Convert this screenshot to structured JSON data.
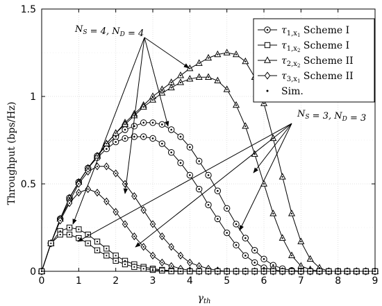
{
  "chart_data": {
    "type": "line",
    "xlabel": "γ",
    "xlabel_sub": "th",
    "ylabel": "Throughput (bps/Hz)",
    "xlim": [
      0,
      9
    ],
    "ylim": [
      0,
      1.5
    ],
    "xticks": [
      "0",
      "1",
      "2",
      "3",
      "4",
      "5",
      "6",
      "7",
      "8",
      "9"
    ],
    "yticks": [
      "0",
      "0.5",
      "1",
      "1.5"
    ],
    "grid": true,
    "legend_placement": "top-right",
    "legend": [
      {
        "sym": "τ",
        "sub": "1,x",
        "subsub": "1",
        "label": "Scheme I",
        "marker": "circle-dot"
      },
      {
        "sym": "τ",
        "sub": "1,x",
        "subsub": "2",
        "label": "Scheme I",
        "marker": "square"
      },
      {
        "sym": "τ",
        "sub": "2,x",
        "subsub": "2",
        "label": "Scheme II",
        "marker": "triangle"
      },
      {
        "sym": "τ",
        "sub": "3,x",
        "subsub": "1",
        "label": "Scheme II",
        "marker": "diamond"
      },
      {
        "sym": "",
        "sub": "",
        "subsub": "",
        "label": "Sim.",
        "marker": "dot"
      }
    ],
    "annotations": [
      {
        "text": "N_S = 4, N_D = 4"
      },
      {
        "text": "N_S = 3, N_D = 3"
      }
    ],
    "x": [
      0,
      0.25,
      0.5,
      0.75,
      1,
      1.25,
      1.5,
      1.75,
      2,
      2.25,
      2.5,
      2.75,
      3,
      3.25,
      3.5,
      3.75,
      4,
      4.25,
      4.5,
      4.75,
      5,
      5.25,
      5.5,
      5.75,
      6,
      6.25,
      6.5,
      6.75,
      7,
      7.25,
      7.5,
      7.75,
      8,
      8.25,
      8.5,
      8.75,
      9
    ],
    "series": [
      {
        "name": "τ1,x1 Scheme I (N=4)",
        "marker": "circle-dot",
        "values": [
          0,
          0.16,
          0.3,
          0.42,
          0.51,
          0.59,
          0.66,
          0.72,
          0.77,
          0.81,
          0.83,
          0.85,
          0.85,
          0.84,
          0.81,
          0.77,
          0.71,
          0.63,
          0.55,
          0.46,
          0.36,
          0.27,
          0.19,
          0.12,
          0.07,
          0.035,
          0.015,
          0.005,
          0,
          0,
          0,
          0,
          0,
          0,
          0,
          0,
          0
        ]
      },
      {
        "name": "τ1,x1 Scheme I (N=3)",
        "marker": "circle-dot",
        "values": [
          0,
          0.16,
          0.3,
          0.42,
          0.51,
          0.59,
          0.65,
          0.7,
          0.74,
          0.76,
          0.77,
          0.77,
          0.76,
          0.73,
          0.68,
          0.62,
          0.55,
          0.47,
          0.38,
          0.3,
          0.22,
          0.15,
          0.09,
          0.05,
          0.02,
          0.01,
          0,
          0,
          0,
          0,
          0,
          0,
          0,
          0,
          0,
          0,
          0
        ]
      },
      {
        "name": "τ2,x2 Scheme II (N=4)",
        "marker": "triangle",
        "values": [
          0,
          0.16,
          0.3,
          0.42,
          0.51,
          0.59,
          0.66,
          0.73,
          0.79,
          0.85,
          0.9,
          0.95,
          1.0,
          1.04,
          1.08,
          1.12,
          1.16,
          1.19,
          1.22,
          1.24,
          1.25,
          1.24,
          1.2,
          1.11,
          0.96,
          0.76,
          0.54,
          0.33,
          0.17,
          0.07,
          0.02,
          0,
          0,
          0,
          0,
          0,
          0
        ]
      },
      {
        "name": "τ2,x2 Scheme II (N=3)",
        "marker": "triangle",
        "values": [
          0,
          0.16,
          0.3,
          0.42,
          0.51,
          0.59,
          0.66,
          0.73,
          0.79,
          0.84,
          0.89,
          0.94,
          0.98,
          1.02,
          1.05,
          1.08,
          1.1,
          1.11,
          1.11,
          1.09,
          1.04,
          0.95,
          0.83,
          0.67,
          0.5,
          0.33,
          0.19,
          0.09,
          0.03,
          0.01,
          0,
          0,
          0,
          0,
          0,
          0,
          0
        ]
      },
      {
        "name": "τ3,x1 Scheme II (N=4)",
        "marker": "diamond",
        "values": [
          0,
          0.16,
          0.3,
          0.4,
          0.5,
          0.57,
          0.6,
          0.6,
          0.56,
          0.5,
          0.43,
          0.35,
          0.27,
          0.2,
          0.14,
          0.09,
          0.05,
          0.03,
          0.015,
          0.005,
          0,
          0,
          0,
          0,
          0,
          0,
          0,
          0,
          0,
          0,
          0,
          0,
          0,
          0,
          0,
          0,
          0
        ]
      },
      {
        "name": "τ3,x1 Scheme II (N=3)",
        "marker": "diamond",
        "values": [
          0,
          0.16,
          0.29,
          0.39,
          0.45,
          0.47,
          0.45,
          0.4,
          0.34,
          0.27,
          0.2,
          0.14,
          0.09,
          0.05,
          0.03,
          0.015,
          0.005,
          0,
          0,
          0,
          0,
          0,
          0,
          0,
          0,
          0,
          0,
          0,
          0,
          0,
          0,
          0,
          0,
          0,
          0,
          0,
          0
        ]
      },
      {
        "name": "τ1,x2 Scheme I (N=4)",
        "marker": "square",
        "values": [
          0,
          0.16,
          0.23,
          0.25,
          0.24,
          0.21,
          0.17,
          0.13,
          0.09,
          0.06,
          0.04,
          0.025,
          0.015,
          0.008,
          0.004,
          0,
          0,
          0,
          0,
          0,
          0,
          0,
          0,
          0,
          0,
          0,
          0,
          0,
          0,
          0,
          0,
          0,
          0,
          0,
          0,
          0,
          0
        ]
      },
      {
        "name": "τ1,x2 Scheme I (N=3)",
        "marker": "square",
        "values": [
          0,
          0.16,
          0.21,
          0.21,
          0.19,
          0.16,
          0.12,
          0.09,
          0.06,
          0.04,
          0.025,
          0.015,
          0.008,
          0.004,
          0,
          0,
          0,
          0,
          0,
          0,
          0,
          0,
          0,
          0,
          0,
          0,
          0,
          0,
          0,
          0,
          0,
          0,
          0,
          0,
          0,
          0,
          0
        ]
      }
    ]
  }
}
